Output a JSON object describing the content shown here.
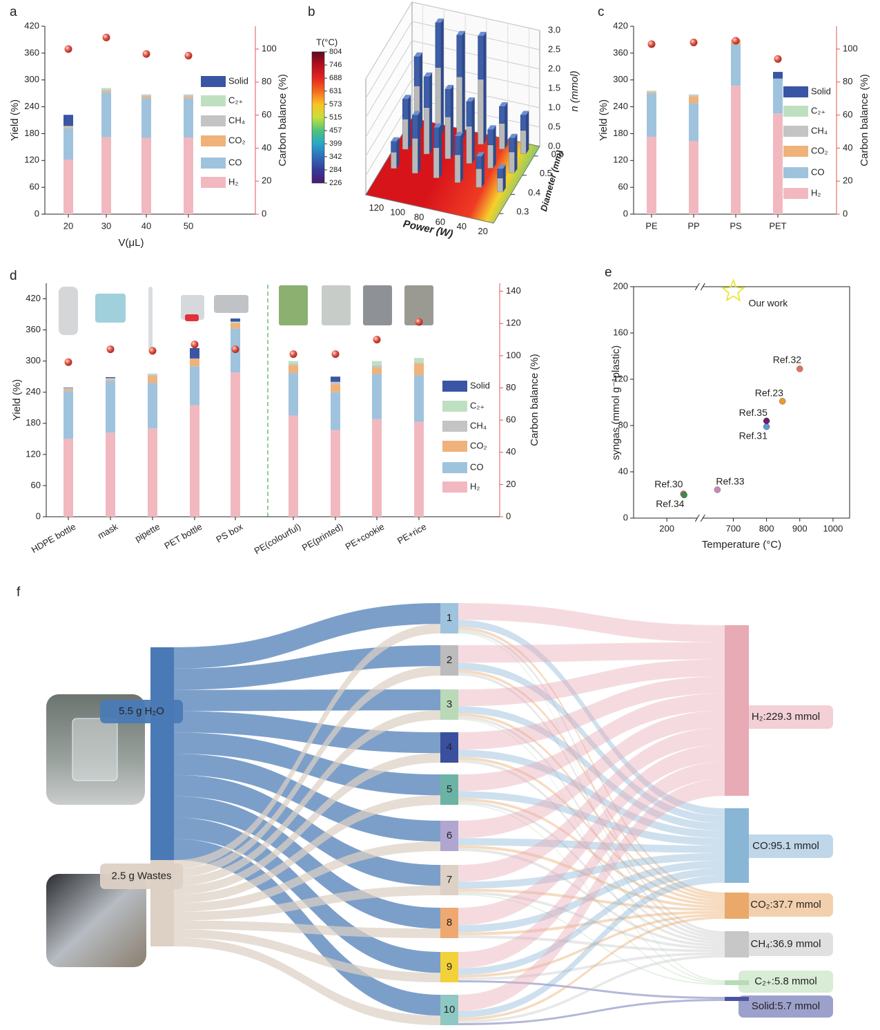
{
  "chart_data": [
    {
      "label": "a",
      "type": "bar",
      "stacked": true,
      "categories": [
        "20",
        "30",
        "40",
        "50"
      ],
      "xlabel": "V(μL)",
      "ylabel": "Yield (%)",
      "y2label": "Carbon balance (%)",
      "ylim": [
        0,
        420
      ],
      "yticks": [
        0,
        60,
        120,
        180,
        240,
        300,
        360,
        420
      ],
      "y2lim": [
        0,
        113.8
      ],
      "y2ticks": [
        0,
        20,
        40,
        60,
        80,
        100
      ],
      "series": [
        {
          "name": "H₂",
          "color": "#f2b8c0",
          "values": [
            122,
            172,
            170,
            171
          ]
        },
        {
          "name": "CO",
          "color": "#9fc3dd",
          "values": [
            70,
            100,
            90,
            88
          ]
        },
        {
          "name": "CO₂",
          "color": "#efb27a",
          "values": [
            2,
            3,
            4,
            4
          ]
        },
        {
          "name": "CH₄",
          "color": "#c4c4c4",
          "values": [
            2,
            3,
            2,
            3
          ]
        },
        {
          "name": "C₂₊",
          "color": "#bfe0c0",
          "values": [
            1,
            4,
            2,
            2
          ]
        },
        {
          "name": "Solid",
          "color": "#3a55a4",
          "values": [
            25,
            0,
            0,
            0
          ]
        },
        {
          "type": "scatter",
          "axis": "y2",
          "color": "#e0574d",
          "values": [
            100,
            107,
            97,
            96
          ]
        }
      ]
    },
    {
      "label": "b",
      "type": "bar3d",
      "xlabel": "Power (W)",
      "ylabel": "Diameter (mm)",
      "zlabel": "n (mmol)",
      "xlim": [
        10,
        130
      ],
      "xticks": [
        20,
        40,
        60,
        80,
        100,
        120
      ],
      "ylim": [
        0.25,
        0.65
      ],
      "yticks": [
        0.3,
        0.4,
        0.5,
        0.6
      ],
      "zlim": [
        0,
        3
      ],
      "zticks": [
        {
          "value": 0,
          "label": "0.0"
        },
        {
          "value": 0.5,
          "label": "0.5"
        },
        {
          "value": 1,
          "label": "1.0"
        },
        1.5,
        {
          "value": 2,
          "label": "2.0"
        },
        2.5,
        {
          "value": 3,
          "label": "3.0"
        }
      ],
      "colorbar": {
        "title": "T(°C)",
        "ticks": [
          226,
          284,
          342,
          399,
          457,
          515,
          573,
          631,
          688,
          746,
          804
        ],
        "colors": [
          "#4a1a6e",
          "#36399a",
          "#2f6db8",
          "#27a7c8",
          "#4fc37a",
          "#c8e03a",
          "#f9c225",
          "#f46a1f",
          "#e3261e",
          "#b3101f",
          "#5c0a1c"
        ]
      },
      "x": [
        120,
        100,
        80,
        60,
        40,
        20,
        120,
        100,
        80,
        60,
        40,
        20,
        120,
        100,
        80,
        60,
        40,
        20
      ],
      "y": [
        0.6,
        0.6,
        0.6,
        0.6,
        0.6,
        0.6,
        0.5,
        0.5,
        0.5,
        0.5,
        0.5,
        0.5,
        0.4,
        0.4,
        0.4,
        0.4,
        0.4,
        0.4
      ],
      "values": [
        1.9,
        2.9,
        2.7,
        2.8,
        1.1,
        1.0,
        1.3,
        2.0,
        1.8,
        1.6,
        1.0,
        0.9,
        0.7,
        1.5,
        1.3,
        1.2,
        0.8,
        0.6
      ]
    },
    {
      "label": "c",
      "type": "bar",
      "stacked": true,
      "categories": [
        "PE",
        "PP",
        "PS",
        "PET"
      ],
      "ylabel": "Yield (%)",
      "y2label": "Carbon balance (%)",
      "ylim": [
        0,
        420
      ],
      "yticks": [
        0,
        60,
        120,
        180,
        240,
        300,
        360,
        420
      ],
      "y2lim": [
        0,
        113.8
      ],
      "y2ticks": [
        0,
        20,
        40,
        60,
        80,
        100
      ],
      "series": [
        {
          "name": "H₂",
          "color": "#f2b8c0",
          "values": [
            173,
            163,
            287,
            225
          ]
        },
        {
          "name": "CO",
          "color": "#9fc3dd",
          "values": [
            97,
            85,
            92,
            78
          ]
        },
        {
          "name": "CO₂",
          "color": "#efb27a",
          "values": [
            2,
            15,
            10,
            0
          ]
        },
        {
          "name": "CH₄",
          "color": "#c4c4c4",
          "values": [
            2,
            3,
            1,
            0
          ]
        },
        {
          "name": "C₂₊",
          "color": "#bfe0c0",
          "values": [
            2,
            2,
            1,
            0
          ]
        },
        {
          "name": "Solid",
          "color": "#3a55a4",
          "values": [
            0,
            0,
            0,
            15
          ]
        },
        {
          "type": "scatter",
          "axis": "y2",
          "color": "#e0574d",
          "values": [
            103,
            104,
            105,
            94
          ]
        }
      ]
    },
    {
      "label": "d",
      "type": "bar",
      "stacked": true,
      "categories": [
        "HDPE bottle",
        "mask",
        "pipette",
        "PET bottle",
        "PS box",
        "PE(colourful)",
        "PE(printed)",
        "PE+cookie",
        "PE+rice"
      ],
      "ylabel": "Yield (%)",
      "y2label": "Carbon balance (%)",
      "ylim": [
        0,
        450
      ],
      "yticks": [
        0,
        60,
        120,
        180,
        240,
        300,
        360,
        420
      ],
      "y2lim": [
        0,
        145
      ],
      "y2ticks": [
        0,
        20,
        40,
        60,
        80,
        100,
        120,
        140
      ],
      "series": [
        {
          "name": "H₂",
          "color": "#f2b8c0",
          "values": [
            150,
            162,
            170,
            215,
            278,
            195,
            167,
            188,
            183
          ]
        },
        {
          "name": "CO",
          "color": "#9fc3dd",
          "values": [
            92,
            100,
            88,
            75,
            85,
            82,
            73,
            87,
            90
          ]
        },
        {
          "name": "CO₂",
          "color": "#efb27a",
          "values": [
            3,
            2,
            13,
            15,
            10,
            15,
            15,
            12,
            22
          ]
        },
        {
          "name": "CH₄",
          "color": "#c4c4c4",
          "values": [
            2,
            2,
            3,
            0,
            1,
            3,
            5,
            5,
            2
          ]
        },
        {
          "name": "C₂₊",
          "color": "#bfe0c0",
          "values": [
            1,
            1,
            2,
            0,
            2,
            5,
            0,
            8,
            9
          ]
        },
        {
          "name": "Solid",
          "color": "#3a55a4",
          "values": [
            1,
            2,
            0,
            20,
            6,
            0,
            10,
            0,
            0
          ]
        },
        {
          "type": "scatter",
          "axis": "y2",
          "color": "#e0574d",
          "values": [
            96,
            104,
            103,
            107,
            104,
            101,
            101,
            110,
            121
          ]
        }
      ]
    },
    {
      "label": "e",
      "type": "scatter",
      "xlabel": "Temperature (°C)",
      "ylabel": "syngas (mmol g⁻¹plastic)",
      "xlim": [
        100,
        1050
      ],
      "xbreak": [
        300,
        600
      ],
      "xticks": [
        200,
        700,
        800,
        900,
        1000
      ],
      "ylim": [
        0,
        200
      ],
      "yticks": [
        0,
        40,
        80,
        120,
        160,
        200
      ],
      "series": [
        {
          "name": "Ref.30",
          "color": "#e2725f",
          "x": [
            250
          ],
          "values": [
            21
          ]
        },
        {
          "name": "Ref.34",
          "color": "#3f8a4a",
          "x": [
            252
          ],
          "values": [
            20
          ]
        },
        {
          "name": "Ref.33",
          "color": "#c58ab8",
          "x": [
            652
          ],
          "values": [
            24.5
          ]
        },
        {
          "name": "Ref.31",
          "color": "#5b9bd5",
          "x": [
            800
          ],
          "values": [
            79
          ]
        },
        {
          "name": "Ref.35",
          "color": "#6a1f6e",
          "x": [
            800
          ],
          "values": [
            84
          ]
        },
        {
          "name": "Ref.23",
          "color": "#ee9a2e",
          "x": [
            848
          ],
          "values": [
            101
          ]
        },
        {
          "name": "Ref.32",
          "color": "#e2725f",
          "x": [
            900
          ],
          "values": [
            129
          ]
        },
        {
          "name": "Our work",
          "color": "#e8e53a",
          "marker": "star",
          "x": [
            700
          ],
          "values": [
            196
          ]
        }
      ]
    },
    {
      "label": "f",
      "type": "sankey",
      "nodes": [
        {
          "name": "5.5 g H₂O",
          "color": "#4a7ab5"
        },
        {
          "name": "2.5 g Wastes",
          "color": "#ddd0c4"
        },
        {
          "name": "1",
          "color": "#9fc3dc"
        },
        {
          "name": "2",
          "color": "#bcbcbc"
        },
        {
          "name": "3",
          "color": "#b9d9b7"
        },
        {
          "name": "4",
          "color": "#3a4f9e"
        },
        {
          "name": "5",
          "color": "#6ab3a5"
        },
        {
          "name": "6",
          "color": "#b0a6cf"
        },
        {
          "name": "7",
          "color": "#ddd0c5"
        },
        {
          "name": "8",
          "color": "#eea870"
        },
        {
          "name": "9",
          "color": "#f2d13a"
        },
        {
          "name": "10",
          "color": "#8ec8c2"
        },
        {
          "name": "H₂:229.3 mmol",
          "color": "#e8aab4"
        },
        {
          "name": "CO:95.1 mmol",
          "color": "#8ab6d6"
        },
        {
          "name": "CO₂:37.7 mmol",
          "color": "#eaa96a"
        },
        {
          "name": "CH₄:36.9 mmol",
          "color": "#c7c7c7"
        },
        {
          "name": "C₂₊:5.8 mmol",
          "color": "#b8dcb5"
        },
        {
          "name": "Solid:5.7 mmol",
          "color": "#4a54a2"
        }
      ],
      "links": [
        [
          0,
          2,
          0.55
        ],
        [
          0,
          3,
          0.55
        ],
        [
          0,
          4,
          0.55
        ],
        [
          0,
          5,
          0.55
        ],
        [
          0,
          6,
          0.55
        ],
        [
          0,
          7,
          0.55
        ],
        [
          0,
          8,
          0.55
        ],
        [
          0,
          9,
          0.55
        ],
        [
          0,
          10,
          0.55
        ],
        [
          0,
          11,
          0.55
        ],
        [
          1,
          2,
          0.25
        ],
        [
          1,
          3,
          0.25
        ],
        [
          1,
          4,
          0.25
        ],
        [
          1,
          5,
          0.25
        ],
        [
          1,
          6,
          0.25
        ],
        [
          1,
          7,
          0.25
        ],
        [
          1,
          8,
          0.25
        ],
        [
          1,
          9,
          0.25
        ],
        [
          1,
          10,
          0.25
        ],
        [
          1,
          11,
          0.25
        ],
        [
          2,
          12,
          22.9
        ],
        [
          2,
          13,
          9.5
        ],
        [
          2,
          14,
          3.8
        ],
        [
          2,
          15,
          3.7
        ],
        [
          2,
          16,
          1.45
        ],
        [
          3,
          12,
          22.9
        ],
        [
          3,
          13,
          9.5
        ],
        [
          3,
          14,
          3.8
        ],
        [
          3,
          15,
          3.7
        ],
        [
          4,
          12,
          22.9
        ],
        [
          4,
          13,
          9.5
        ],
        [
          4,
          14,
          3.8
        ],
        [
          4,
          15,
          3.7
        ],
        [
          4,
          16,
          1.45
        ],
        [
          5,
          12,
          22.9
        ],
        [
          5,
          13,
          9.5
        ],
        [
          5,
          14,
          3.8
        ],
        [
          5,
          15,
          3.7
        ],
        [
          6,
          12,
          22.9
        ],
        [
          6,
          13,
          9.5
        ],
        [
          6,
          14,
          3.8
        ],
        [
          6,
          15,
          3.7
        ],
        [
          6,
          16,
          1.45
        ],
        [
          7,
          12,
          22.9
        ],
        [
          7,
          13,
          9.5
        ],
        [
          7,
          14,
          3.8
        ],
        [
          7,
          15,
          3.7
        ],
        [
          8,
          12,
          22.9
        ],
        [
          8,
          13,
          9.5
        ],
        [
          8,
          14,
          3.8
        ],
        [
          8,
          15,
          3.7
        ],
        [
          8,
          16,
          1.45
        ],
        [
          9,
          12,
          22.9
        ],
        [
          9,
          13,
          9.5
        ],
        [
          9,
          14,
          3.8
        ],
        [
          9,
          15,
          3.7
        ],
        [
          10,
          12,
          22.9
        ],
        [
          10,
          13,
          9.5
        ],
        [
          10,
          14,
          3.8
        ],
        [
          10,
          15,
          3.7
        ],
        [
          10,
          17,
          2.85
        ],
        [
          11,
          12,
          22.9
        ],
        [
          11,
          13,
          9.5
        ],
        [
          11,
          14,
          3.8
        ],
        [
          11,
          15,
          3.7
        ],
        [
          11,
          17,
          2.85
        ]
      ]
    }
  ]
}
